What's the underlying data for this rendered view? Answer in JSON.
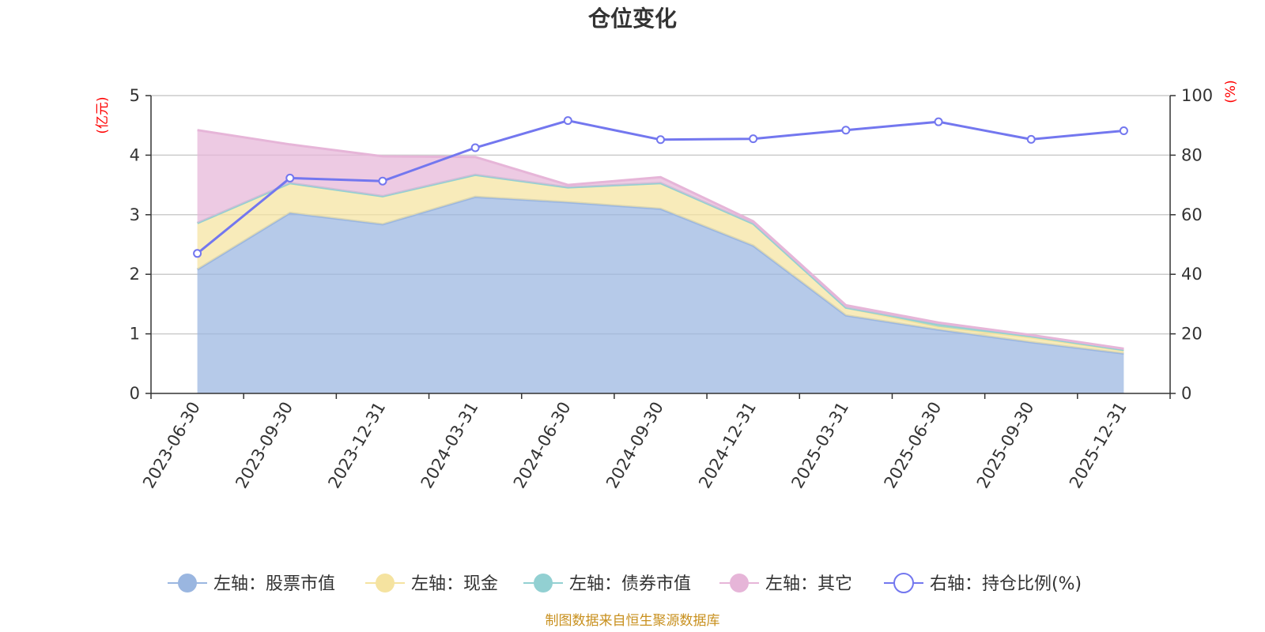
{
  "chart_data": {
    "type": "area",
    "title": "仓位变化",
    "categories": [
      "2023-06-30",
      "2023-09-30",
      "2023-12-31",
      "2024-03-31",
      "2024-06-30",
      "2024-09-30",
      "2024-12-31",
      "2025-03-31",
      "2025-06-30",
      "2025-09-30",
      "2025-12-31"
    ],
    "left_axis": {
      "unit": "(亿元)",
      "ylim": [
        0,
        5
      ],
      "ticks": [
        "0",
        "1",
        "2",
        "3",
        "4",
        "5"
      ]
    },
    "right_axis": {
      "unit": "(%)",
      "ylim": [
        0,
        100
      ],
      "ticks": [
        "0",
        "20",
        "40",
        "60",
        "80",
        "100"
      ]
    },
    "series": [
      {
        "name": "左轴：股票市值",
        "axis": "left",
        "stacked": true,
        "color": "#9ab6e0",
        "values": [
          2.08,
          3.03,
          2.84,
          3.3,
          3.21,
          3.1,
          2.48,
          1.31,
          1.07,
          0.86,
          0.67
        ]
      },
      {
        "name": "左轴：现金",
        "axis": "left",
        "stacked": true,
        "color": "#f5e3a0",
        "values": [
          0.78,
          0.5,
          0.47,
          0.37,
          0.25,
          0.43,
          0.37,
          0.13,
          0.05,
          0.08,
          0.05
        ]
      },
      {
        "name": "左轴：债券市值",
        "axis": "left",
        "stacked": true,
        "color": "#92d0d2",
        "values": [
          0,
          0,
          0,
          0,
          0,
          0,
          0,
          0,
          0.04,
          0.02,
          0.01
        ]
      },
      {
        "name": "左轴：其它",
        "axis": "left",
        "stacked": true,
        "color": "#e6b5d8",
        "values": [
          1.56,
          0.65,
          0.67,
          0.3,
          0.04,
          0.1,
          0.04,
          0.04,
          0.03,
          0.02,
          0.02
        ]
      },
      {
        "name": "右轴：持仓比例(%)",
        "axis": "right",
        "stacked": false,
        "color": "#7377ef",
        "values": [
          47,
          72.3,
          71.3,
          82.5,
          91.6,
          85.2,
          85.5,
          88.4,
          91.2,
          85.3,
          88.2
        ]
      }
    ],
    "legend_position": "bottom",
    "grid": true
  },
  "footer": {
    "text": "制图数据来自恒生聚源数据库",
    "color": "#c8901e"
  }
}
